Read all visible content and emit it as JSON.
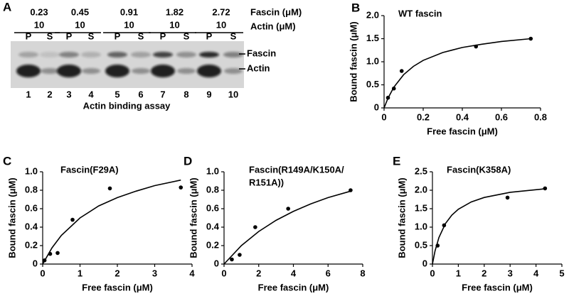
{
  "gel": {
    "label": "A",
    "fascin_conc": [
      0.23,
      0.45,
      0.91,
      1.82,
      2.72
    ],
    "fascin_unit": "Fascin (μM)",
    "actin_conc": [
      10,
      10,
      10,
      10,
      10
    ],
    "actin_unit": "Actin (μM)",
    "lanes": [
      "P",
      "S",
      "P",
      "S",
      "P",
      "S",
      "P",
      "S",
      "P",
      "S"
    ],
    "lane_numbers": [
      1,
      2,
      3,
      4,
      5,
      6,
      7,
      8,
      9,
      10
    ],
    "bands": [
      "Fascin",
      "Actin"
    ],
    "caption": "Actin binding assay"
  },
  "chart_data": [
    {
      "type": "scatter",
      "label": "B",
      "title": "WT fascin",
      "x_label": "Free fascin (μM)",
      "y_label": "Bound fascin (μM)",
      "xlim": [
        0,
        0.8
      ],
      "xticks": [
        0,
        0.2,
        0.4,
        0.6,
        0.8
      ],
      "ylim": [
        0,
        2.0
      ],
      "yticks": [
        0,
        0.5,
        {
          "value": 1.0,
          "label": "1.0"
        },
        1.5,
        {
          "value": 2.0,
          "label": "2.0"
        }
      ],
      "series": [
        {
          "type": "scatter",
          "color": "#000000",
          "x": [
            0.02,
            0.05,
            0.09,
            0.47,
            0.75
          ],
          "values": [
            0.22,
            0.42,
            0.8,
            1.33,
            1.5
          ]
        },
        {
          "type": "line",
          "color": "#000000",
          "x": [
            0,
            0.02,
            0.05,
            0.1,
            0.15,
            0.2,
            0.3,
            0.4,
            0.5,
            0.6,
            0.75
          ],
          "values": [
            0,
            0.21,
            0.45,
            0.72,
            0.9,
            1.03,
            1.2,
            1.31,
            1.38,
            1.44,
            1.5
          ]
        }
      ]
    },
    {
      "type": "scatter",
      "label": "C",
      "title": "Fascin(F29A)",
      "x_label": "Free fascin (μM)",
      "y_label": "Bound fascin (μM)",
      "xlim": [
        0,
        4
      ],
      "xticks": [
        0,
        1,
        2,
        3,
        4
      ],
      "ylim": [
        0,
        1.0
      ],
      "yticks": [
        0,
        0.2,
        0.4,
        0.6,
        0.8,
        {
          "value": 1.0,
          "label": "1.0"
        }
      ],
      "series": [
        {
          "type": "scatter",
          "color": "#000000",
          "x": [
            0.05,
            0.2,
            0.4,
            0.8,
            1.8,
            3.7
          ],
          "values": [
            0.04,
            0.11,
            0.12,
            0.48,
            0.82,
            0.83
          ]
        },
        {
          "type": "line",
          "color": "#000000",
          "x": [
            0,
            0.25,
            0.5,
            1,
            1.5,
            2,
            2.5,
            3,
            3.7
          ],
          "values": [
            0,
            0.176,
            0.31,
            0.5,
            0.63,
            0.72,
            0.79,
            0.85,
            0.91
          ]
        }
      ]
    },
    {
      "type": "scatter",
      "label": "D",
      "title": [
        "Fascin(R149A/K150A/",
        "R151A))"
      ],
      "x_label": "Free fascin (μM)",
      "y_label": "Bound fascin (μM)",
      "xlim": [
        0,
        8
      ],
      "xticks": [
        0,
        2,
        4,
        6,
        8
      ],
      "ylim": [
        0,
        1.0
      ],
      "yticks": [
        0,
        0.2,
        0.4,
        0.6,
        0.8,
        {
          "value": 1.0,
          "label": "1.0"
        }
      ],
      "series": [
        {
          "type": "scatter",
          "color": "#000000",
          "x": [
            0.45,
            0.9,
            1.8,
            3.7,
            7.3
          ],
          "values": [
            0.05,
            0.1,
            0.4,
            0.6,
            0.8
          ]
        },
        {
          "type": "line",
          "color": "#000000",
          "x": [
            0,
            1,
            2,
            3,
            4,
            5,
            6,
            7.3
          ],
          "values": [
            0,
            0.2,
            0.353,
            0.474,
            0.571,
            0.652,
            0.72,
            0.79
          ]
        }
      ]
    },
    {
      "type": "scatter",
      "label": "E",
      "title": "Fascin(K358A)",
      "x_label": "Free fascin (μM)",
      "y_label": "Bound fascin (μM)",
      "xlim": [
        0,
        5
      ],
      "xticks": [
        0,
        1,
        2,
        3,
        4,
        5
      ],
      "ylim": [
        0,
        2.5
      ],
      "yticks": [
        0,
        0.5,
        {
          "value": 1.0,
          "label": "1.0"
        },
        1.5,
        {
          "value": 2.0,
          "label": "2.0"
        },
        2.5
      ],
      "series": [
        {
          "type": "scatter",
          "color": "#000000",
          "x": [
            0.2,
            0.45,
            2.9,
            4.35
          ],
          "values": [
            0.5,
            1.05,
            1.8,
            2.05
          ]
        },
        {
          "type": "line",
          "color": "#000000",
          "x": [
            0,
            0.1,
            0.25,
            0.5,
            0.75,
            1,
            1.5,
            2,
            3,
            4.35
          ],
          "values": [
            0,
            0.354,
            0.719,
            1.095,
            1.327,
            1.484,
            1.683,
            1.804,
            1.944,
            2.04
          ]
        }
      ]
    }
  ]
}
